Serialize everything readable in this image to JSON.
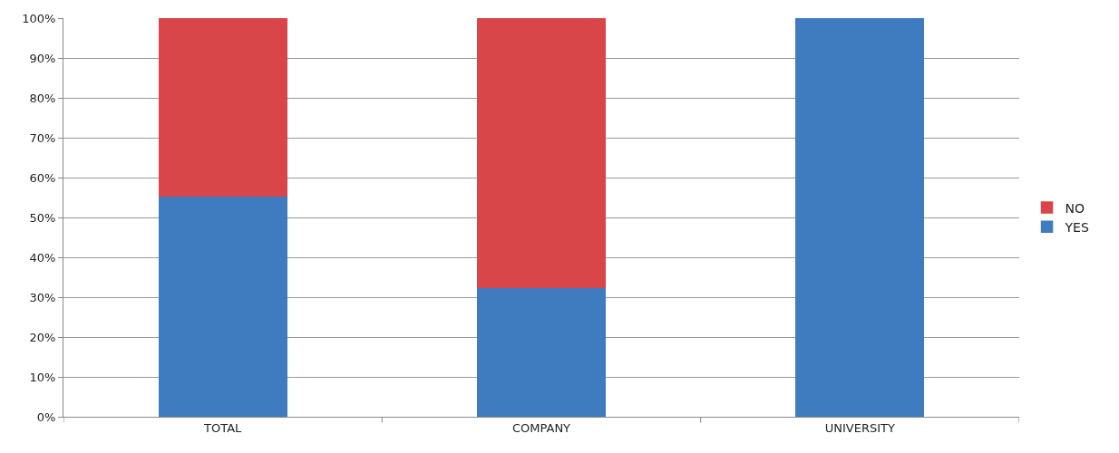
{
  "chart_data": {
    "type": "bar",
    "stacked": true,
    "categories": [
      "TOTAL",
      "COMPANY",
      "UNIVERSITY"
    ],
    "series": [
      {
        "name": "YES",
        "color": "#3f7cbf",
        "values": [
          55.5,
          32.5,
          100
        ]
      },
      {
        "name": "NO",
        "color": "#d9464a",
        "values": [
          44.5,
          67.5,
          null
        ]
      }
    ],
    "ylim": [
      0,
      100
    ],
    "yticks": [
      {
        "value": 0,
        "label": "0%"
      },
      {
        "value": 10,
        "label": "10%"
      },
      {
        "value": 20,
        "label": "20%"
      },
      {
        "value": 30,
        "label": "30%"
      },
      {
        "value": 40,
        "label": "40%"
      },
      {
        "value": 50,
        "label": "50%"
      },
      {
        "value": 60,
        "label": "60%"
      },
      {
        "value": 70,
        "label": "70%"
      },
      {
        "value": 80,
        "label": "80%"
      },
      {
        "value": 90,
        "label": "90%"
      },
      {
        "value": 100,
        "label": "100%"
      }
    ],
    "grid": "y",
    "legend": "right"
  }
}
